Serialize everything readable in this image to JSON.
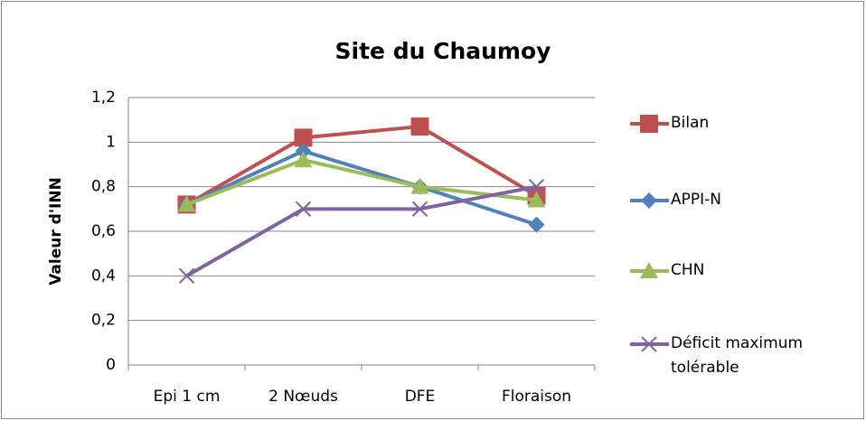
{
  "chart_data": {
    "type": "line",
    "title": "Site du Chaumoy",
    "ylabel": "Valeur d'INN",
    "categories": [
      "Epi 1 cm",
      "2 Nœuds",
      "DFE",
      "Floraison"
    ],
    "series": [
      {
        "name": "Bilan",
        "color": "#c0504d",
        "marker": "square",
        "values": [
          0.72,
          1.02,
          1.07,
          0.76
        ]
      },
      {
        "name": "APPI-N",
        "color": "#4f81bd",
        "marker": "diamond",
        "values": [
          0.72,
          0.96,
          0.8,
          0.63
        ]
      },
      {
        "name": "CHN",
        "color": "#9bbb59",
        "marker": "triangle",
        "values": [
          0.72,
          0.92,
          0.8,
          0.74
        ]
      },
      {
        "name": "Déficit maximum tolérable",
        "color": "#8064a2",
        "marker": "x",
        "values": [
          0.4,
          0.7,
          0.7,
          0.8
        ]
      }
    ],
    "ylim": [
      0,
      1.2
    ],
    "yticks": [
      0,
      {
        "value": 0.2,
        "label": "0,2"
      },
      {
        "value": 0.4,
        "label": "0,4"
      },
      {
        "value": 0.6,
        "label": "0,6"
      },
      {
        "value": 0.8,
        "label": "0,8"
      },
      1,
      {
        "value": 1.2,
        "label": "1,2"
      }
    ],
    "grid": true,
    "legend": "right"
  }
}
